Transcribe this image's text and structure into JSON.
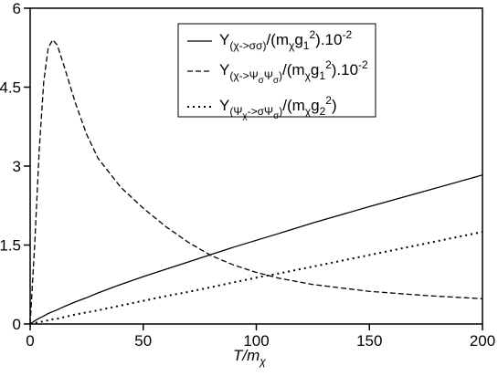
{
  "chart_data": {
    "type": "line",
    "xlabel": [
      [
        "T/m",
        ""
      ],
      [
        "χ",
        "sub"
      ]
    ],
    "x": [
      0,
      2,
      4,
      6,
      8,
      10,
      12,
      15,
      20,
      25,
      30,
      40,
      50,
      60,
      70,
      80,
      90,
      100,
      110,
      125,
      150,
      175,
      200
    ],
    "series": [
      {
        "name": [
          [
            "Y",
            ""
          ],
          [
            "(χ->σσ)",
            "sub"
          ],
          [
            "/(m",
            ""
          ],
          [
            "χ",
            "sub"
          ],
          [
            "g",
            ""
          ],
          [
            "1",
            "sub"
          ],
          [
            "2",
            "sup"
          ],
          [
            ").10",
            ""
          ],
          [
            "-2",
            "sup"
          ]
        ],
        "color": "#000000",
        "style": "solid",
        "values": [
          0,
          0.06,
          0.11,
          0.15,
          0.2,
          0.235,
          0.27,
          0.33,
          0.42,
          0.5,
          0.59,
          0.75,
          0.9,
          1.04,
          1.18,
          1.32,
          1.46,
          1.59,
          1.72,
          1.92,
          2.23,
          2.53,
          2.83
        ]
      },
      {
        "name": [
          [
            "Y",
            ""
          ],
          [
            "(χ->Ψ",
            "sub"
          ],
          [
            "σ",
            "subsub"
          ],
          [
            "Ψ",
            "sub"
          ],
          [
            "σ",
            "subsub"
          ],
          [
            ")",
            "sub"
          ],
          [
            "/(m",
            ""
          ],
          [
            "χ",
            "sub"
          ],
          [
            "g",
            ""
          ],
          [
            "1",
            "sub"
          ],
          [
            "2",
            "sup"
          ],
          [
            ").10",
            ""
          ],
          [
            "-2",
            "sup"
          ]
        ],
        "color": "#000000",
        "style": "dashed",
        "values": [
          0,
          1.5,
          3.3,
          4.6,
          5.25,
          5.4,
          5.3,
          4.9,
          4.2,
          3.6,
          3.15,
          2.6,
          2.2,
          1.85,
          1.55,
          1.3,
          1.12,
          0.98,
          0.87,
          0.75,
          0.62,
          0.54,
          0.48
        ]
      },
      {
        "name": [
          [
            "Y",
            ""
          ],
          [
            "(Ψ",
            "sub"
          ],
          [
            "χ",
            "subsub"
          ],
          [
            "->σΨ",
            "sub"
          ],
          [
            "σ",
            "subsub"
          ],
          [
            ")",
            "sub"
          ],
          [
            "/(m",
            ""
          ],
          [
            "χ",
            "sub"
          ],
          [
            "g",
            ""
          ],
          [
            "2",
            "sub"
          ],
          [
            "2",
            "sup"
          ],
          [
            ")",
            ""
          ]
        ],
        "color": "#000000",
        "style": "dotted",
        "values": [
          0,
          0.02,
          0.035,
          0.05,
          0.07,
          0.09,
          0.1,
          0.13,
          0.18,
          0.22,
          0.26,
          0.35,
          0.44,
          0.53,
          0.61,
          0.7,
          0.79,
          0.88,
          0.96,
          1.09,
          1.31,
          1.53,
          1.75
        ]
      }
    ],
    "xlim": [
      0,
      200
    ],
    "xticks": [
      0,
      50,
      100,
      150,
      200
    ],
    "ylim": [
      0,
      6
    ],
    "yticks": [
      0,
      1.5,
      3,
      4.5,
      6
    ]
  }
}
